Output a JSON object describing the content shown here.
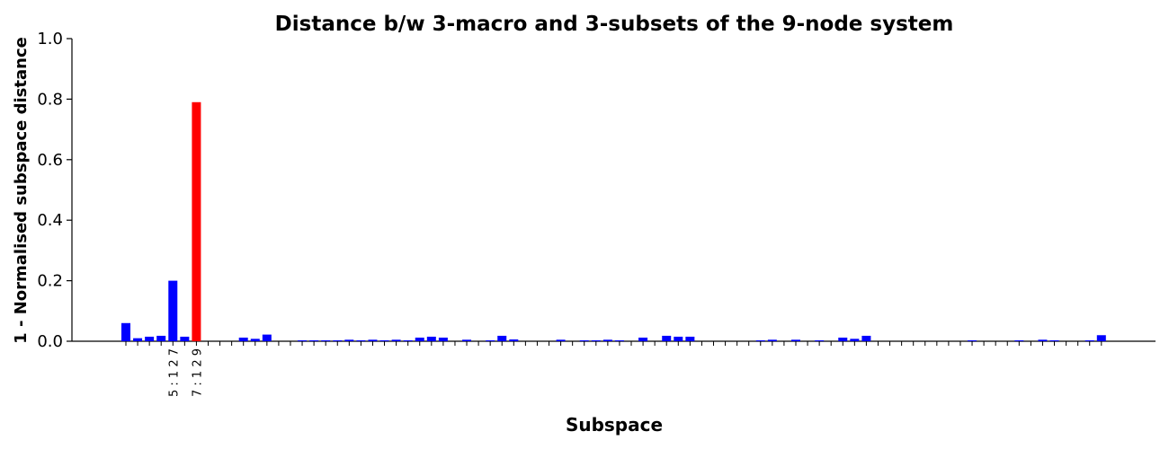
{
  "chart_data": {
    "type": "bar",
    "title": "Distance b/w 3-macro and 3-subsets of the 9-node system",
    "x_label": "Subspace",
    "y_label": "1 - Normalised subspace distance",
    "categories": [
      null,
      null,
      null,
      null,
      "5 : 1 2 7",
      null,
      "7 : 1 2 9",
      null,
      null,
      null,
      null,
      null,
      null,
      null,
      null,
      null,
      null,
      null,
      null,
      null,
      null,
      null,
      null,
      null,
      null,
      null,
      null,
      null,
      null,
      null,
      null,
      null,
      null,
      null,
      null,
      null,
      null,
      null,
      null,
      null,
      null,
      null,
      null,
      null,
      null,
      null,
      null,
      null,
      null,
      null,
      null,
      null,
      null,
      null,
      null,
      null,
      null,
      null,
      null,
      null,
      null,
      null,
      null,
      null,
      null,
      null,
      null,
      null,
      null,
      null,
      null,
      null,
      null,
      null,
      null,
      null,
      null,
      null,
      null,
      null,
      null,
      null,
      null,
      null
    ],
    "values": [
      0.06,
      0.01,
      0.015,
      0.018,
      0.2,
      0.015,
      0.79,
      0,
      0,
      0,
      0.012,
      0.008,
      0.022,
      0,
      0,
      0.003,
      0.003,
      0.003,
      0.003,
      0.005,
      0.003,
      0.005,
      0.003,
      0.005,
      0.003,
      0.012,
      0.015,
      0.012,
      0,
      0.005,
      0,
      0.003,
      0.018,
      0.006,
      0,
      0,
      0,
      0.005,
      0,
      0.003,
      0.003,
      0.005,
      0.003,
      0,
      0.012,
      0,
      0.018,
      0.015,
      0.015,
      0,
      0,
      0,
      0,
      0,
      0.003,
      0.005,
      0,
      0.005,
      0,
      0.003,
      0,
      0.012,
      0.008,
      0.018,
      0,
      0,
      0,
      0,
      0,
      0,
      0,
      0,
      0.003,
      0,
      0,
      0,
      0.003,
      0,
      0.005,
      0.003,
      0,
      0,
      0.003,
      0.02
    ],
    "colors": [
      "#0000ff",
      "#0000ff",
      "#0000ff",
      "#0000ff",
      "#0000ff",
      "#0000ff",
      "#ff0000",
      "#0000ff",
      "#0000ff",
      "#0000ff",
      "#0000ff",
      "#0000ff",
      "#0000ff",
      "#0000ff",
      "#0000ff",
      "#0000ff",
      "#0000ff",
      "#0000ff",
      "#0000ff",
      "#0000ff",
      "#0000ff",
      "#0000ff",
      "#0000ff",
      "#0000ff",
      "#0000ff",
      "#0000ff",
      "#0000ff",
      "#0000ff",
      "#0000ff",
      "#0000ff",
      "#0000ff",
      "#0000ff",
      "#0000ff",
      "#0000ff",
      "#0000ff",
      "#0000ff",
      "#0000ff",
      "#0000ff",
      "#0000ff",
      "#0000ff",
      "#0000ff",
      "#0000ff",
      "#0000ff",
      "#0000ff",
      "#0000ff",
      "#0000ff",
      "#0000ff",
      "#0000ff",
      "#0000ff",
      "#0000ff",
      "#0000ff",
      "#0000ff",
      "#0000ff",
      "#0000ff",
      "#0000ff",
      "#0000ff",
      "#0000ff",
      "#0000ff",
      "#0000ff",
      "#0000ff",
      "#0000ff",
      "#0000ff",
      "#0000ff",
      "#0000ff",
      "#0000ff",
      "#0000ff",
      "#0000ff",
      "#0000ff",
      "#0000ff",
      "#0000ff",
      "#0000ff",
      "#0000ff",
      "#0000ff",
      "#0000ff",
      "#0000ff",
      "#0000ff",
      "#0000ff",
      "#0000ff",
      "#0000ff",
      "#0000ff",
      "#0000ff",
      "#0000ff",
      "#0000ff",
      "#0000ff"
    ],
    "ylim": [
      0,
      1.0
    ],
    "yticks": [
      {
        "value": 0,
        "label": "0.0"
      },
      0.2,
      0.4,
      0.6,
      0.8,
      {
        "value": 1,
        "label": "1.0"
      }
    ]
  }
}
